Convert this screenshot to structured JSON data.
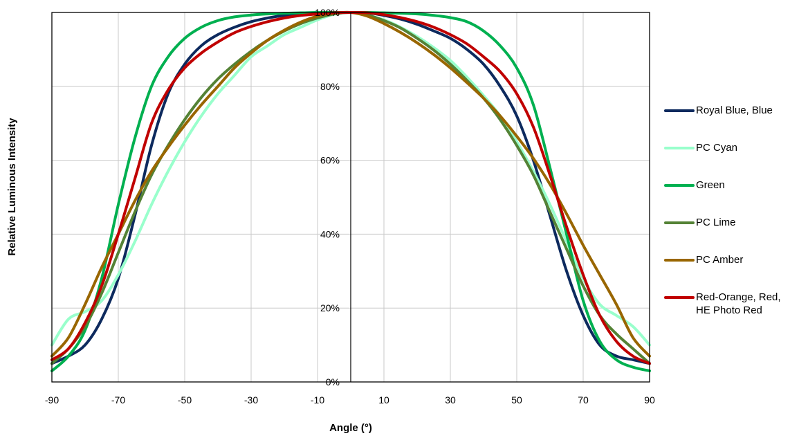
{
  "chart_data": {
    "type": "line",
    "title": "",
    "xlabel": "Angle (°)",
    "ylabel": "Relative Luminous Intensity",
    "xlim": [
      -90,
      90
    ],
    "ylim": [
      0,
      100
    ],
    "x_ticks": [
      "-90",
      "-70",
      "-50",
      "-30",
      "-10",
      "10",
      "30",
      "50",
      "70",
      "90"
    ],
    "y_ticks": [
      "0%",
      "20%",
      "40%",
      "60%",
      "80%",
      "100%"
    ],
    "grid": true,
    "legend_position": "right",
    "x": [
      -90,
      -85,
      -80,
      -75,
      -70,
      -65,
      -60,
      -55,
      -50,
      -45,
      -40,
      -35,
      -30,
      -25,
      -20,
      -15,
      -10,
      -5,
      0,
      5,
      10,
      15,
      20,
      25,
      30,
      35,
      40,
      45,
      50,
      55,
      60,
      65,
      70,
      75,
      80,
      85,
      90
    ],
    "series": [
      {
        "name": "Royal Blue, Blue",
        "color": "#0d2a5e",
        "values": [
          5,
          7,
          10,
          17,
          28,
          45,
          64,
          78,
          86,
          91,
          94,
          96,
          97.5,
          98.5,
          99.2,
          99.6,
          99.8,
          99.9,
          100,
          99.9,
          99.2,
          98.2,
          96.8,
          95,
          93,
          90,
          86,
          80,
          72,
          60,
          45,
          30,
          18,
          10,
          7,
          6,
          5
        ]
      },
      {
        "name": "PC Cyan",
        "color": "#99ffcc",
        "values": [
          10,
          17,
          19,
          22,
          29,
          38,
          48,
          57,
          65,
          72,
          78,
          83,
          88,
          91,
          94,
          96,
          98,
          99.5,
          100,
          99.2,
          98,
          96,
          93.5,
          90.5,
          87,
          82.5,
          77.5,
          72,
          65,
          57,
          48,
          38,
          28,
          21,
          18,
          15,
          10
        ]
      },
      {
        "name": "Green",
        "color": "#00b050",
        "values": [
          3,
          7,
          14,
          28,
          48,
          66,
          80,
          88,
          93,
          96,
          97.8,
          98.8,
          99.3,
          99.6,
          99.8,
          99.9,
          100,
          100,
          100,
          100,
          99.9,
          99.8,
          99.6,
          99.2,
          98.6,
          97.5,
          95,
          91,
          85,
          75,
          58,
          40,
          22,
          11,
          6,
          4,
          3
        ]
      },
      {
        "name": "PC Lime",
        "color": "#548235",
        "values": [
          5,
          9,
          15,
          24,
          35,
          46,
          56,
          64,
          71,
          77,
          82,
          86,
          89.5,
          92.5,
          95,
          97,
          98.5,
          99.6,
          100,
          99.3,
          97.8,
          95.8,
          93,
          89.8,
          86,
          81.6,
          76.8,
          71,
          64,
          56,
          46,
          36,
          26,
          18,
          13,
          9,
          5
        ]
      },
      {
        "name": "PC Amber",
        "color": "#996600",
        "values": [
          7,
          12,
          21,
          31,
          40,
          49,
          57,
          63.5,
          69.5,
          75,
          80,
          85,
          89,
          92.5,
          95.2,
          97.4,
          99,
          99.8,
          100,
          99,
          97,
          94.6,
          91.8,
          88.6,
          85,
          81,
          76.8,
          72,
          66.5,
          60.5,
          53.5,
          45.5,
          37,
          29,
          21,
          12,
          7
        ]
      },
      {
        "name": "Red-Orange, Red,\nHE Photo Red",
        "color": "#c00000",
        "values": [
          6,
          9,
          16,
          26,
          40,
          55,
          70,
          79,
          85,
          89,
          92,
          94.5,
          96.2,
          97.5,
          98.5,
          99.2,
          99.6,
          99.9,
          100,
          99.9,
          99.4,
          98.6,
          97.5,
          96,
          94,
          91.5,
          88,
          84,
          78,
          69,
          56,
          42,
          29,
          18,
          11,
          7,
          5
        ]
      }
    ]
  }
}
